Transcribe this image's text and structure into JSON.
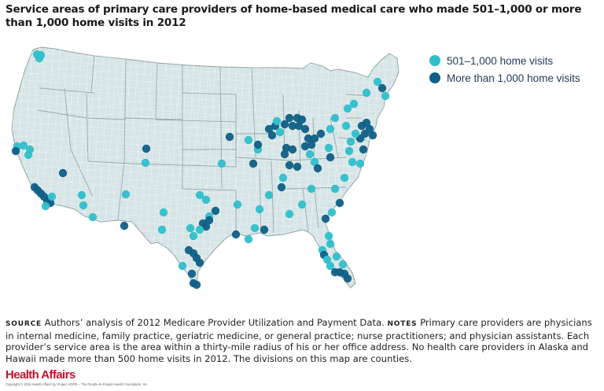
{
  "title": "Service areas of primary care providers of home-based medical care who made 501–1,000 or more than 1,000 home visits in 2012",
  "colors": {
    "light": "#2fbfcb",
    "dark": "#0f5f86",
    "land": "#d6e4e6",
    "county_line": "#ffffff",
    "state_line": "#9aabad"
  },
  "legend": [
    {
      "key": "light",
      "label": "501–1,000 home visits"
    },
    {
      "key": "dark",
      "label": "More than 1,000 home visits"
    }
  ],
  "notes": {
    "source_label": "Source",
    "source_text": "Authors’ analysis of 2012 Medicare Provider Utilization and Payment Data.",
    "notes_label": "Notes",
    "notes_text": "Primary care providers are physicians in internal medicine, family practice, geriatric medicine, or general practice; nurse practitioners; and physician assistants. Each provider’s service area is the area within a thirty-mile radius of his or her office address. No health care providers in Alaska and Hawaii made more than 500 home visits in 2012. The divisions on this map are counties."
  },
  "brand": {
    "name": "Health Affairs",
    "copyright": "Copyright © 2016 Health Affairs by Project HOPE – The People-to-People Health Foundation, Inc."
  }
}
